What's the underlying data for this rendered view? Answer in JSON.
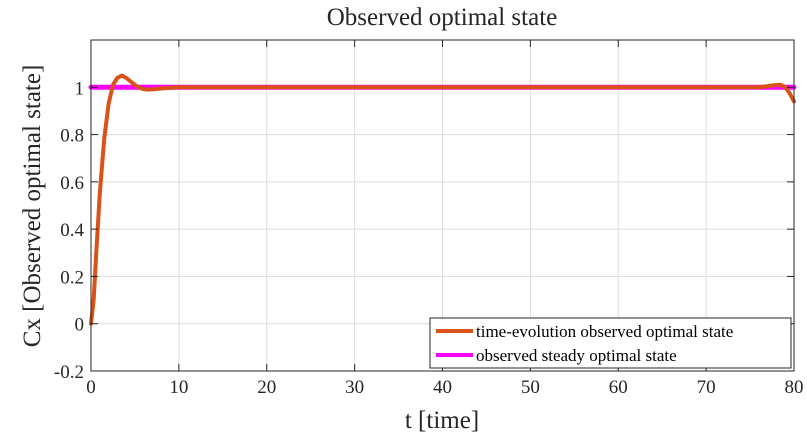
{
  "chart_data": {
    "type": "line",
    "title": "Observed optimal state",
    "xlabel": "t [time]",
    "ylabel": "Cx [Observed optimal state]",
    "xlim": [
      0,
      80
    ],
    "ylim": [
      -0.2,
      1.2
    ],
    "xticks": [
      0,
      10,
      20,
      30,
      40,
      50,
      60,
      70,
      80
    ],
    "yticks": [
      -0.2,
      0,
      0.2,
      0.4,
      0.6,
      0.8,
      1
    ],
    "xtick_labels": [
      "0",
      "10",
      "20",
      "30",
      "40",
      "50",
      "60",
      "70",
      "80"
    ],
    "ytick_labels": [
      "-0.2",
      "0",
      "0.2",
      "0.4",
      "0.6",
      "0.8",
      "1"
    ],
    "grid": true,
    "legend_position": "bottom-right",
    "series": [
      {
        "name": "time-evolution observed optimal state",
        "color": "#D95319",
        "x": [
          0,
          0.3,
          0.6,
          1.0,
          1.5,
          2.0,
          2.5,
          3.0,
          3.5,
          4.0,
          4.5,
          5.0,
          5.5,
          6.0,
          6.5,
          7.0,
          8.0,
          10,
          20,
          40,
          60,
          70,
          75,
          76,
          77,
          78,
          78.5,
          79,
          79.5,
          80
        ],
        "y": [
          0.0,
          0.1,
          0.3,
          0.55,
          0.78,
          0.93,
          1.01,
          1.04,
          1.05,
          1.04,
          1.025,
          1.01,
          0.998,
          0.992,
          0.99,
          0.991,
          0.995,
          1.0,
          1.0,
          1.0,
          1.0,
          1.0,
          1.0,
          1.0,
          1.005,
          1.01,
          1.01,
          1.0,
          0.975,
          0.94
        ]
      },
      {
        "name": "observed steady optimal state",
        "color": "#FF00FF",
        "x": [
          0,
          80
        ],
        "y": [
          1.0,
          1.0
        ]
      }
    ]
  }
}
